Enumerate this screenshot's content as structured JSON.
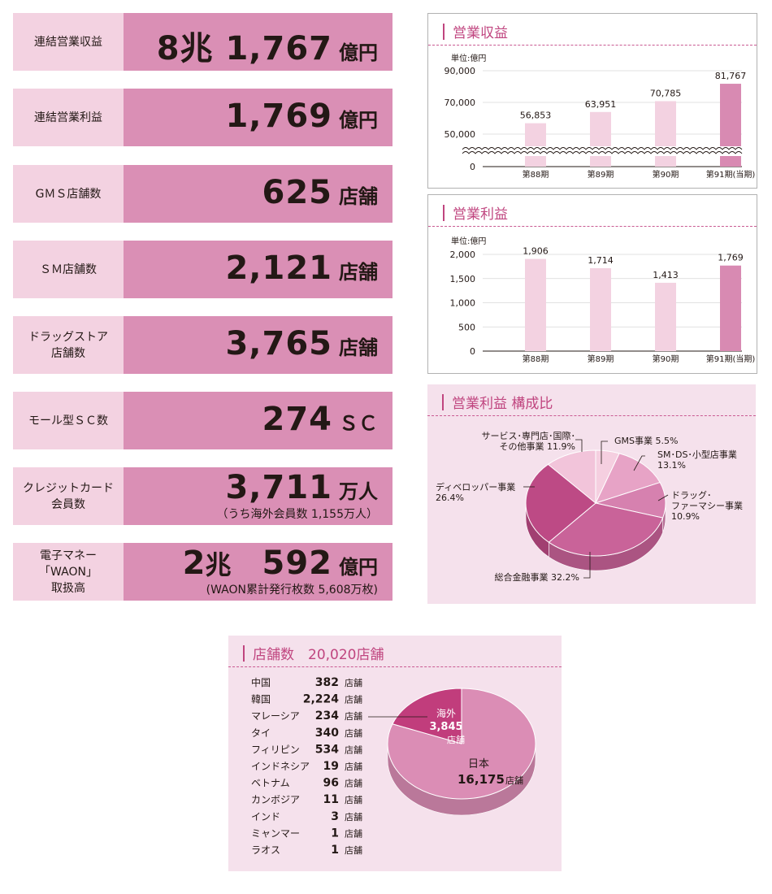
{
  "kpis": [
    {
      "label": "連結営業収益",
      "value": "8兆 1,767",
      "unit": "億円",
      "sub": ""
    },
    {
      "label": "連結営業利益",
      "value": "1,769",
      "unit": "億円",
      "sub": ""
    },
    {
      "label": "GＭＳ店舗数",
      "value": "625",
      "unit": "店舗",
      "sub": ""
    },
    {
      "label": "ＳＭ店舗数",
      "value": "2,121",
      "unit": "店舗",
      "sub": ""
    },
    {
      "label": "ドラッグストア\n店舗数",
      "value": "3,765",
      "unit": "店舗",
      "sub": ""
    },
    {
      "label": "モール型ＳＣ数",
      "value": "274",
      "unit": "ＳＣ",
      "sub": ""
    },
    {
      "label": "クレジットカード\n会員数",
      "value": "3,711",
      "unit": "万人",
      "sub": "（うち海外会員数 1,155万人）"
    },
    {
      "label": "電子マネー\n「WAON」\n取扱高",
      "value_pre": "2",
      "value_pre_unit": "兆",
      "value": "592",
      "unit": "億円",
      "sub": "(WAON累計発行枚数 5,608万枚)"
    }
  ],
  "colors": {
    "header": "#c0457f",
    "light_bar": "#f3d2e1",
    "dark_bar": "#d88ab2",
    "kpi_label_bg": "#f3d2e1",
    "kpi_value_bg": "#da8fb5"
  },
  "chart_data": [
    {
      "type": "bar",
      "title": "営業収益",
      "unit_label": "単位:億円",
      "categories": [
        "第88期",
        "第89期",
        "第90期",
        "第91期(当期)"
      ],
      "values": [
        56853,
        63951,
        70785,
        81767
      ],
      "value_labels": [
        "56,853",
        "63,951",
        "70,785",
        "81,767"
      ],
      "yticks": [
        0,
        50000,
        70000,
        90000
      ],
      "ytick_labels": [
        "0",
        "50,000",
        "70,000",
        "90,000"
      ],
      "axis_break": true,
      "highlight_index": 3
    },
    {
      "type": "bar",
      "title": "営業利益",
      "unit_label": "単位:億円",
      "categories": [
        "第88期",
        "第89期",
        "第90期",
        "第91期(当期)"
      ],
      "values": [
        1906,
        1714,
        1413,
        1769
      ],
      "value_labels": [
        "1,906",
        "1,714",
        "1,413",
        "1,769"
      ],
      "ylim": [
        0,
        2000
      ],
      "yticks": [
        0,
        500,
        1000,
        1500,
        2000
      ],
      "ytick_labels": [
        "0",
        "500",
        "1,000",
        "1,500",
        "2,000"
      ],
      "highlight_index": 3
    },
    {
      "type": "pie",
      "title": "営業利益 構成比",
      "slices": [
        {
          "label": "GMS事業 5.5%",
          "value": 5.5,
          "color": "#f5cfe0"
        },
        {
          "label": "SM･DS･小型店事業\n13.1%",
          "value": 13.1,
          "color": "#e7a3c6"
        },
        {
          "label": "ドラッグ･\nファーマシー事業\n10.9%",
          "value": 10.9,
          "color": "#d681af"
        },
        {
          "label": "総合金融事業 32.2%",
          "value": 32.2,
          "color": "#c96399"
        },
        {
          "label": "ディベロッパー事業\n26.4%",
          "value": 26.4,
          "color": "#bd4a85"
        },
        {
          "label": "サービス･専門店･国際･\nその他事業 11.9%",
          "value": 11.9,
          "color": "#f2c4da"
        }
      ]
    },
    {
      "type": "pie",
      "title": "店舗数　20,020店舗",
      "slices": [
        {
          "label": "日本",
          "value_label": "16,175",
          "unit": "店舗",
          "value": 16175,
          "color": "#db8db5"
        },
        {
          "label": "海外",
          "value_label": "3,845",
          "unit": "店舗",
          "value": 3845,
          "color": "#c13d7c"
        }
      ],
      "table": [
        {
          "country": "中国",
          "count": "382",
          "unit": "店舗"
        },
        {
          "country": "韓国",
          "count": "2,224",
          "unit": "店舗"
        },
        {
          "country": "マレーシア",
          "count": "234",
          "unit": "店舗"
        },
        {
          "country": "タイ",
          "count": "340",
          "unit": "店舗"
        },
        {
          "country": "フィリピン",
          "count": "534",
          "unit": "店舗"
        },
        {
          "country": "インドネシア",
          "count": "19",
          "unit": "店舗"
        },
        {
          "country": "ベトナム",
          "count": "96",
          "unit": "店舗"
        },
        {
          "country": "カンボジア",
          "count": "11",
          "unit": "店舗"
        },
        {
          "country": "インド",
          "count": "3",
          "unit": "店舗"
        },
        {
          "country": "ミャンマー",
          "count": "1",
          "unit": "店舗"
        },
        {
          "country": "ラオス",
          "count": "1",
          "unit": "店舗"
        }
      ]
    }
  ]
}
